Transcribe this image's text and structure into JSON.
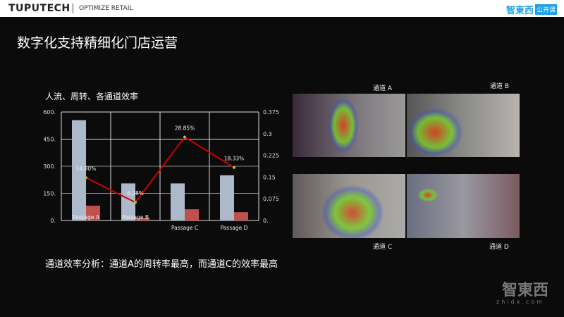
{
  "header": {
    "brand": "TUPUTECH",
    "tagline": "OPTIMIZE RETAIL",
    "logo_text": "智東西",
    "logo_badge": "公开课"
  },
  "page_title": "数字化支持精细化门店运营",
  "chart_data": {
    "type": "bar",
    "title": "人流、周转、各通道效率",
    "categories": [
      "Passage A",
      "Passage B",
      "Passage C",
      "Passage D"
    ],
    "left_axis": {
      "ylim": [
        0,
        600
      ],
      "ticks": [
        "0.",
        "150.",
        "300.",
        "450.",
        "600."
      ]
    },
    "right_axis": {
      "ylim": [
        0,
        0.375
      ],
      "ticks": [
        "0.",
        "0.075",
        "0.15",
        "0.225",
        "0.3",
        "0.375"
      ]
    },
    "grid": true,
    "series": [
      {
        "kind": "bar",
        "axis": "left",
        "color": "#adb9ca",
        "values": [
          555,
          205,
          205,
          250
        ]
      },
      {
        "kind": "bar",
        "axis": "left",
        "color": "#c0504d",
        "values": [
          82,
          14,
          62,
          46
        ]
      },
      {
        "kind": "line",
        "axis": "right",
        "color": "#cc0000",
        "values": [
          0.148,
          0.0628,
          0.2885,
          0.1833
        ],
        "labels": [
          "14.80%",
          "6.28%",
          "28.85%",
          "18.33%"
        ]
      }
    ]
  },
  "cameras": [
    {
      "label": "通道 A"
    },
    {
      "label": "通道 B"
    },
    {
      "label": "通道 C"
    },
    {
      "label": "通道 D"
    }
  ],
  "analysis": "通道效率分析：通道A的周转率最高，而通道C的效率最高",
  "watermark": {
    "text": "智東西",
    "url": "zhidx.com"
  }
}
